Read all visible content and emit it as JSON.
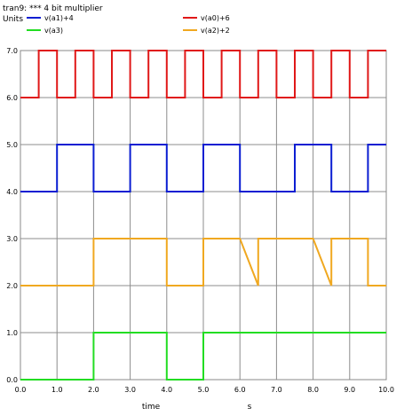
{
  "chart_data": {
    "type": "line",
    "title": "tran9: *** 4 bit multiplier",
    "ylabel": "Units",
    "xlabel": "time",
    "xunit": "s",
    "xlim": [
      0,
      10
    ],
    "ylim": [
      0,
      7
    ],
    "grid": true,
    "legend_position": "top",
    "x_ticks": [
      "0.0",
      "1.0",
      "2.0",
      "3.0",
      "4.0",
      "5.0",
      "6.0",
      "7.0",
      "8.0",
      "9.0",
      "10.0"
    ],
    "y_ticks": [
      "0.0",
      "1.0",
      "2.0",
      "3.0",
      "4.0",
      "5.0",
      "6.0",
      "7.0"
    ],
    "series": [
      {
        "name": "v(a1)+4",
        "color": "#0a1ed2",
        "x": [
          0,
          1,
          1,
          2,
          2,
          3,
          3,
          4,
          4,
          5,
          5,
          6,
          6,
          7,
          7,
          7.5,
          7.5,
          8.5,
          8.5,
          9.5,
          9.5,
          10
        ],
        "y": [
          4,
          4,
          5,
          5,
          4,
          4,
          5,
          5,
          4,
          4,
          5,
          5,
          4,
          4,
          4,
          4,
          5,
          5,
          4,
          4,
          5,
          5
        ]
      },
      {
        "name": "v(a0)+6",
        "color": "#e01818",
        "x": [
          0,
          0.5,
          0.5,
          1,
          1,
          1.5,
          1.5,
          2,
          2,
          2.5,
          2.5,
          3,
          3,
          3.5,
          3.5,
          4,
          4,
          4.5,
          4.5,
          5,
          5,
          5.5,
          5.5,
          6,
          6,
          6.5,
          6.5,
          7,
          7,
          7.5,
          7.5,
          8,
          8,
          8.5,
          8.5,
          9,
          9,
          9.5,
          9.5,
          10
        ],
        "y": [
          6,
          6,
          7,
          7,
          6,
          6,
          7,
          7,
          6,
          6,
          7,
          7,
          6,
          6,
          7,
          7,
          6,
          6,
          7,
          7,
          6,
          6,
          7,
          7,
          6,
          6,
          7,
          7,
          6,
          6,
          7,
          7,
          6,
          6,
          7,
          7,
          6,
          6,
          7,
          7
        ]
      },
      {
        "name": "v(a3)",
        "color": "#22dd22",
        "x": [
          0,
          2,
          2,
          4,
          4,
          5,
          5,
          10
        ],
        "y": [
          0,
          0,
          1,
          1,
          0,
          0,
          1,
          1
        ]
      },
      {
        "name": "v(a2)+2",
        "color": "#f0a820",
        "x": [
          0,
          2,
          2,
          4,
          4,
          5,
          5,
          6,
          6,
          6.5,
          6.5,
          8,
          8,
          8.5,
          8.5,
          9.5,
          9.5,
          10
        ],
        "y": [
          2,
          2,
          3,
          3,
          2,
          2,
          3,
          3,
          3,
          2,
          3,
          3,
          3,
          2,
          3,
          3,
          2,
          2
        ]
      }
    ]
  }
}
